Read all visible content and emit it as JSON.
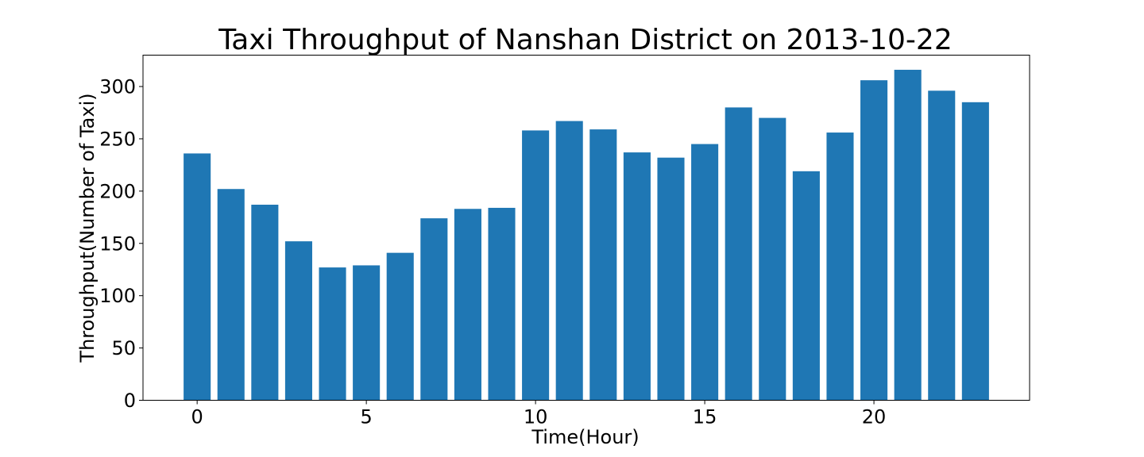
{
  "chart_data": {
    "type": "bar",
    "title": "Taxi Throughput of Nanshan District on 2013-10-22",
    "xlabel": "Time(Hour)",
    "ylabel": "Throughput(Number of Taxi)",
    "x": [
      0,
      1,
      2,
      3,
      4,
      5,
      6,
      7,
      8,
      9,
      10,
      11,
      12,
      13,
      14,
      15,
      16,
      17,
      18,
      19,
      20,
      21,
      22,
      23
    ],
    "values": [
      236,
      202,
      187,
      152,
      127,
      129,
      141,
      174,
      183,
      184,
      258,
      267,
      259,
      237,
      232,
      245,
      280,
      270,
      219,
      256,
      306,
      316,
      296,
      285
    ],
    "xlim": [
      -1.6,
      24.6
    ],
    "ylim": [
      0,
      330
    ],
    "xticks": [
      "0",
      "5",
      "10",
      "15",
      "20"
    ],
    "yticks": [
      "0",
      "50",
      "100",
      "150",
      "200",
      "250",
      "300"
    ],
    "bar_color": "#1f77b4",
    "grid": false,
    "legend": "none"
  }
}
